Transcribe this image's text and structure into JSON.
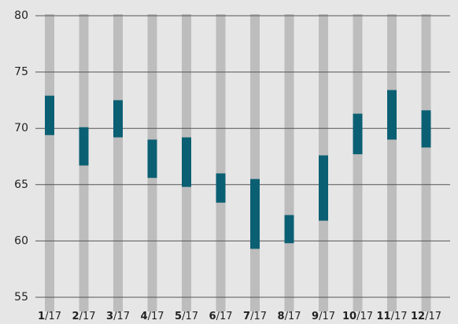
{
  "chart_data": {
    "type": "range-bar",
    "categories": [
      "1/17",
      "2/17",
      "3/17",
      "4/17",
      "5/17",
      "6/17",
      "7/17",
      "8/17",
      "9/17",
      "10/17",
      "11/17",
      "12/17"
    ],
    "low": [
      69.4,
      66.7,
      69.2,
      65.6,
      64.8,
      63.4,
      59.3,
      59.8,
      61.8,
      67.7,
      69.0,
      68.3
    ],
    "high": [
      72.9,
      70.1,
      72.5,
      69.0,
      69.2,
      66.0,
      65.5,
      62.3,
      67.6,
      71.3,
      73.4,
      71.6
    ],
    "color": "#0b5f73",
    "ylim": [
      55,
      80
    ],
    "yticks": [
      55,
      60,
      65,
      70,
      75,
      80
    ],
    "grid": true
  }
}
